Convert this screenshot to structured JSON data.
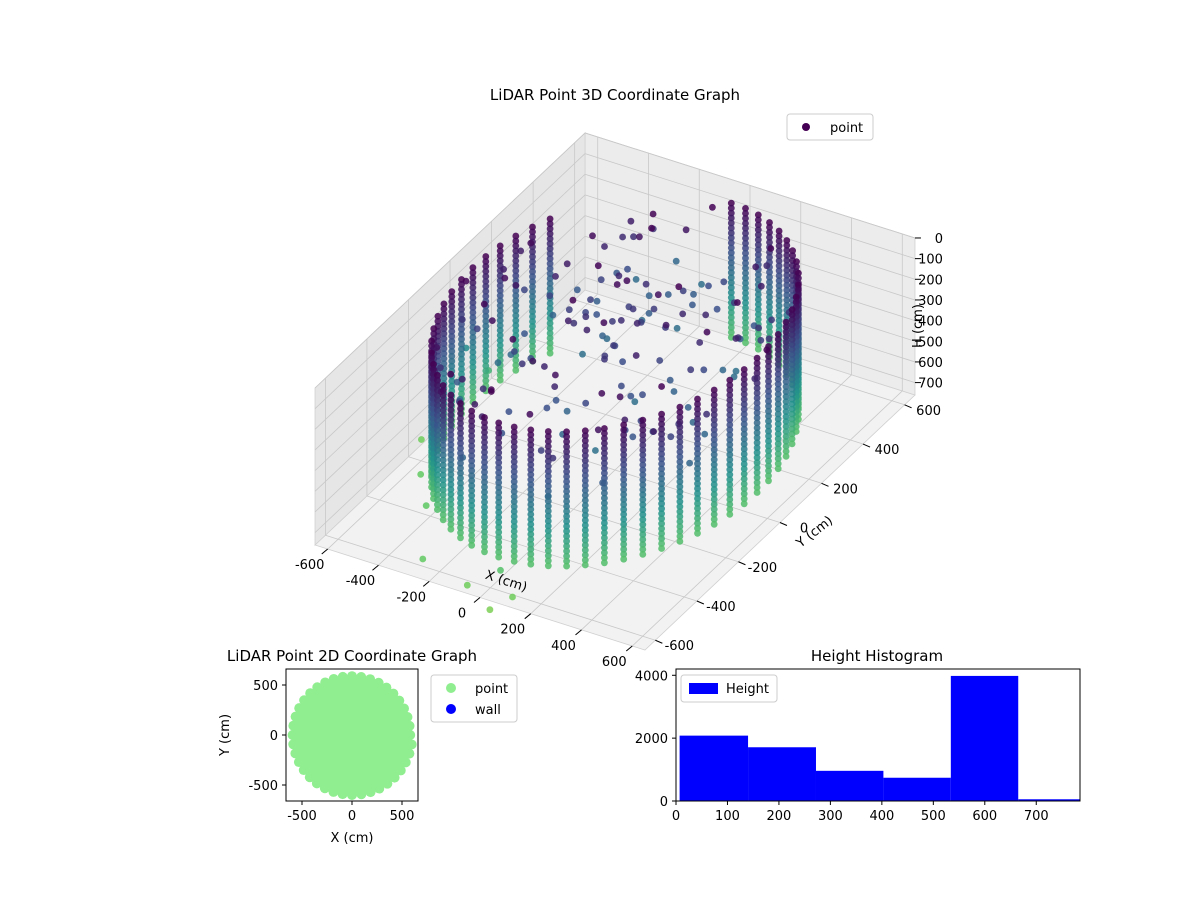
{
  "chart_data": [
    {
      "type": "scatter",
      "projection": "3d",
      "title": "LiDAR Point 3D Coordinate Graph",
      "xlabel": "X (cm)",
      "ylabel": "Y (cm)",
      "zlabel": "H (cm)",
      "xlim": [
        -650,
        650
      ],
      "ylim": [
        -650,
        650
      ],
      "zlim": [
        0,
        760
      ],
      "z_inverted": true,
      "xticks": [
        -600,
        -400,
        -200,
        0,
        200,
        400,
        600
      ],
      "yticks": [
        -600,
        -400,
        -200,
        0,
        200,
        400,
        600
      ],
      "zticks": [
        0,
        100,
        200,
        300,
        400,
        500,
        600,
        700
      ],
      "grid": true,
      "colormap": "viridis",
      "legend": {
        "position": "top-right",
        "entries": [
          {
            "name": "point",
            "color": "#440154"
          }
        ]
      },
      "series": [
        {
          "name": "point",
          "shape": "cylindrical wall of points",
          "radius": 560,
          "height_range": [
            0,
            650
          ],
          "points_per_column": 28,
          "column_azimuth_step_deg": 6,
          "gap_azimuth_deg": [
            95,
            145
          ],
          "interior_scatter": {
            "count": 170,
            "radius_max": 560,
            "height_range": [
              0,
              350
            ]
          },
          "stray_points": [
            {
              "x": -640,
              "y": -150,
              "z": 720
            },
            {
              "x": -520,
              "y": -300,
              "z": 700
            },
            {
              "x": -400,
              "y": -420,
              "z": 690
            },
            {
              "x": -250,
              "y": -620,
              "z": 700
            },
            {
              "x": -50,
              "y": -650,
              "z": 720
            },
            {
              "x": 80,
              "y": -700,
              "z": 740
            },
            {
              "x": -580,
              "y": 100,
              "z": 600
            },
            {
              "x": -620,
              "y": 40,
              "z": 450
            },
            {
              "x": 40,
              "y": -600,
              "z": 660
            },
            {
              "x": 120,
              "y": -640,
              "z": 720
            }
          ]
        }
      ]
    },
    {
      "type": "scatter",
      "title": "LiDAR Point 2D Coordinate Graph",
      "xlabel": "X (cm)",
      "ylabel": "Y (cm)",
      "xlim": [
        -660,
        660
      ],
      "ylim": [
        -660,
        660
      ],
      "xticks": [
        -500,
        0,
        500
      ],
      "yticks": [
        -500,
        0,
        500
      ],
      "legend": {
        "position": "outside-right",
        "entries": [
          {
            "name": "point",
            "color": "#90ee90"
          },
          {
            "name": "wall",
            "color": "#0000ff"
          }
        ]
      },
      "series": [
        {
          "name": "point",
          "color": "#90ee90",
          "shape": "filled disk",
          "radius": 600
        },
        {
          "name": "wall",
          "color": "#0000ff",
          "values": []
        }
      ]
    },
    {
      "type": "bar",
      "title": "Height Histogram",
      "xlim": [
        0,
        785
      ],
      "ylim": [
        0,
        4200
      ],
      "xticks": [
        0,
        100,
        200,
        300,
        400,
        500,
        600,
        700
      ],
      "yticks": [
        0,
        2000,
        4000
      ],
      "legend": {
        "position": "top-left",
        "entries": [
          {
            "name": "Height",
            "color": "#0000ff"
          }
        ]
      },
      "series": [
        {
          "name": "Height",
          "color": "#0000ff",
          "bins": [
            {
              "x0": 7,
              "x1": 140,
              "value": 2080
            },
            {
              "x0": 140,
              "x1": 272,
              "value": 1710
            },
            {
              "x0": 272,
              "x1": 403,
              "value": 960
            },
            {
              "x0": 403,
              "x1": 534,
              "value": 740
            },
            {
              "x0": 534,
              "x1": 665,
              "value": 3980
            },
            {
              "x0": 665,
              "x1": 785,
              "value": 55
            }
          ]
        }
      ]
    }
  ]
}
